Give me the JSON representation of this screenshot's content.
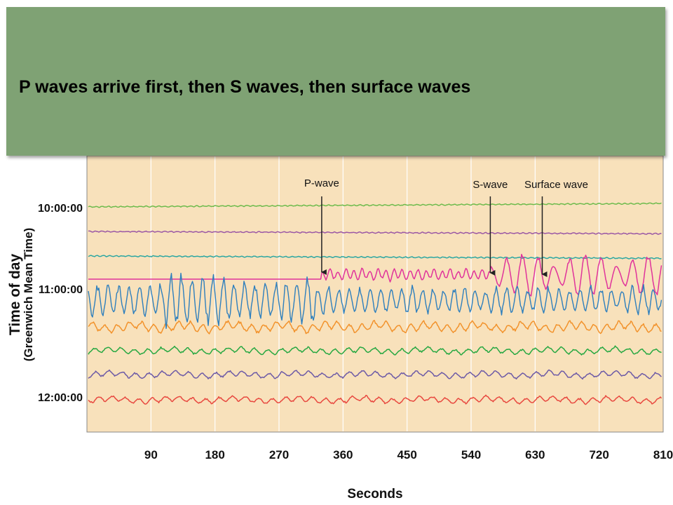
{
  "banner": {
    "text": "P waves arrive first, then S waves, then surface waves",
    "background": "#7fa274"
  },
  "chart_data": {
    "type": "line",
    "title": "",
    "xlabel": "Seconds",
    "ylabel": "Time of day",
    "ylabel_sub": "(Greenwich Mean Time)",
    "xlim": [
      0,
      810
    ],
    "x_ticks": [
      90,
      180,
      270,
      360,
      450,
      540,
      630,
      720,
      810
    ],
    "y_ticks": [
      "10:00:00",
      "11:00:00",
      "12:00:00"
    ],
    "plot_background": "#f8e1bb",
    "grid": "vertical",
    "annotations": [
      {
        "label": "P-wave",
        "x": 330
      },
      {
        "label": "S-wave",
        "x": 567
      },
      {
        "label": "Surface wave",
        "x": 640
      }
    ],
    "series": [
      {
        "trace": 1,
        "color": "#6dbb4c",
        "activity": "quiet"
      },
      {
        "trace": 2,
        "color": "#9b58a5",
        "activity": "quiet"
      },
      {
        "trace": 3,
        "color": "#2ca7a2",
        "activity": "quiet"
      },
      {
        "trace": 4,
        "color": "#e0339b",
        "activity": "P arrival then large surface waves"
      },
      {
        "trace": 5,
        "color": "#2e7fbd",
        "activity": "strong oscillation"
      },
      {
        "trace": 6,
        "color": "#f2922b",
        "activity": "moderate oscillation"
      },
      {
        "trace": 7,
        "color": "#27a842",
        "activity": "small oscillation"
      },
      {
        "trace": 8,
        "color": "#6d5aa6",
        "activity": "small oscillation"
      },
      {
        "trace": 9,
        "color": "#e8483f",
        "activity": "small oscillation"
      }
    ]
  }
}
